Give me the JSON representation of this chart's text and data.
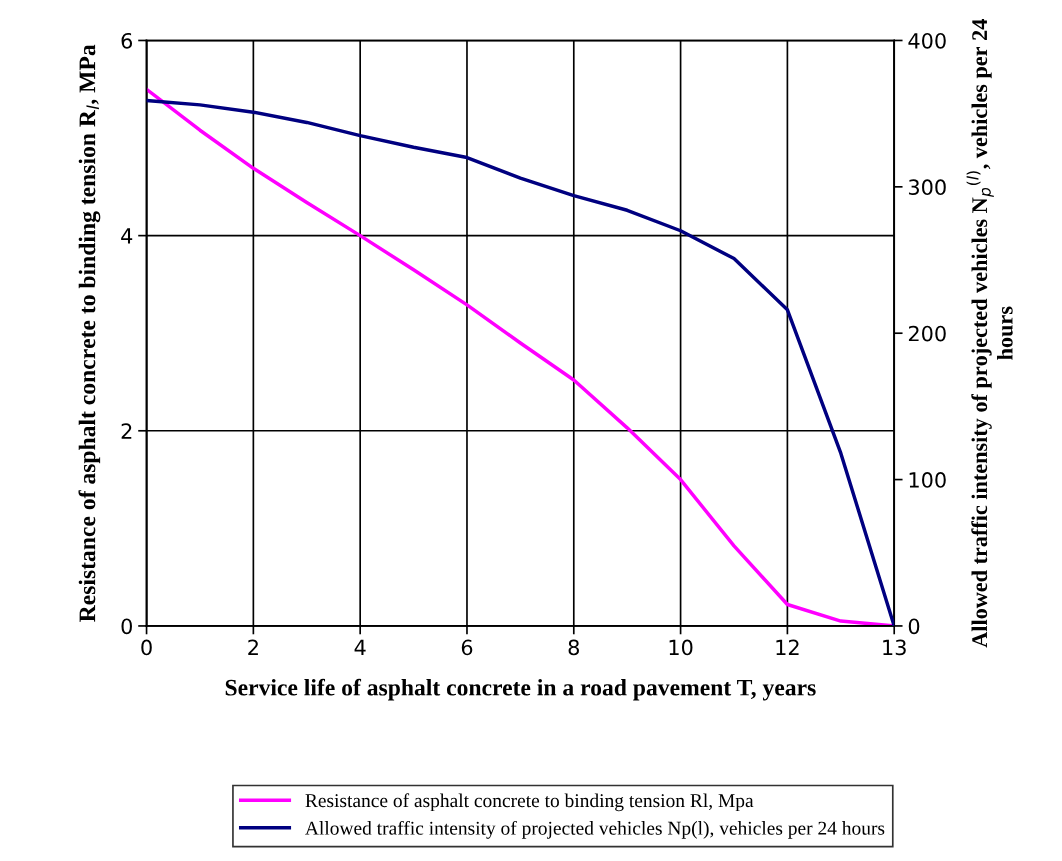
{
  "chart_data": {
    "type": "line",
    "xlabel": "Service life of asphalt concrete in a road pavement T, years",
    "ylabel": "Resistance of asphalt concrete to binding tension R$_{l}$, MPa",
    "y2label": "Allowed traffic intensity of projected vehicles N$_{p}$$^{(l)}$, vehicles per 24 hours",
    "categories": [
      "0",
      null,
      "2",
      null,
      "4",
      null,
      "6",
      null,
      "8",
      null,
      "10",
      null,
      "12",
      null,
      "13"
    ],
    "ylim": [
      0,
      6
    ],
    "yticks": [
      0,
      2,
      4,
      6
    ],
    "y2lim": [
      0,
      400
    ],
    "y2ticks": [
      0,
      100,
      200,
      300,
      400
    ],
    "grid": true,
    "legend": "bottom",
    "marker": "none",
    "line_style": "solid",
    "series": [
      {
        "name": "Resistance of asphalt concrete to binding tension Rl, Mpa",
        "color": "#ff00ff",
        "values": [
          5.5,
          5.08,
          4.69,
          4.34,
          4.0,
          3.65,
          3.29,
          2.9,
          2.52,
          2.03,
          1.5,
          0.82,
          0.22,
          0.05,
          0.0
        ]
      },
      {
        "name": "Allowed traffic intensity of projected vehicles Np(l), vehicles per 24 hours",
        "color": "#000080",
        "axis": "y2",
        "values": [
          359,
          356,
          351,
          344,
          335,
          327,
          320,
          306,
          294,
          284,
          270,
          251,
          216,
          118,
          0
        ]
      }
    ]
  }
}
